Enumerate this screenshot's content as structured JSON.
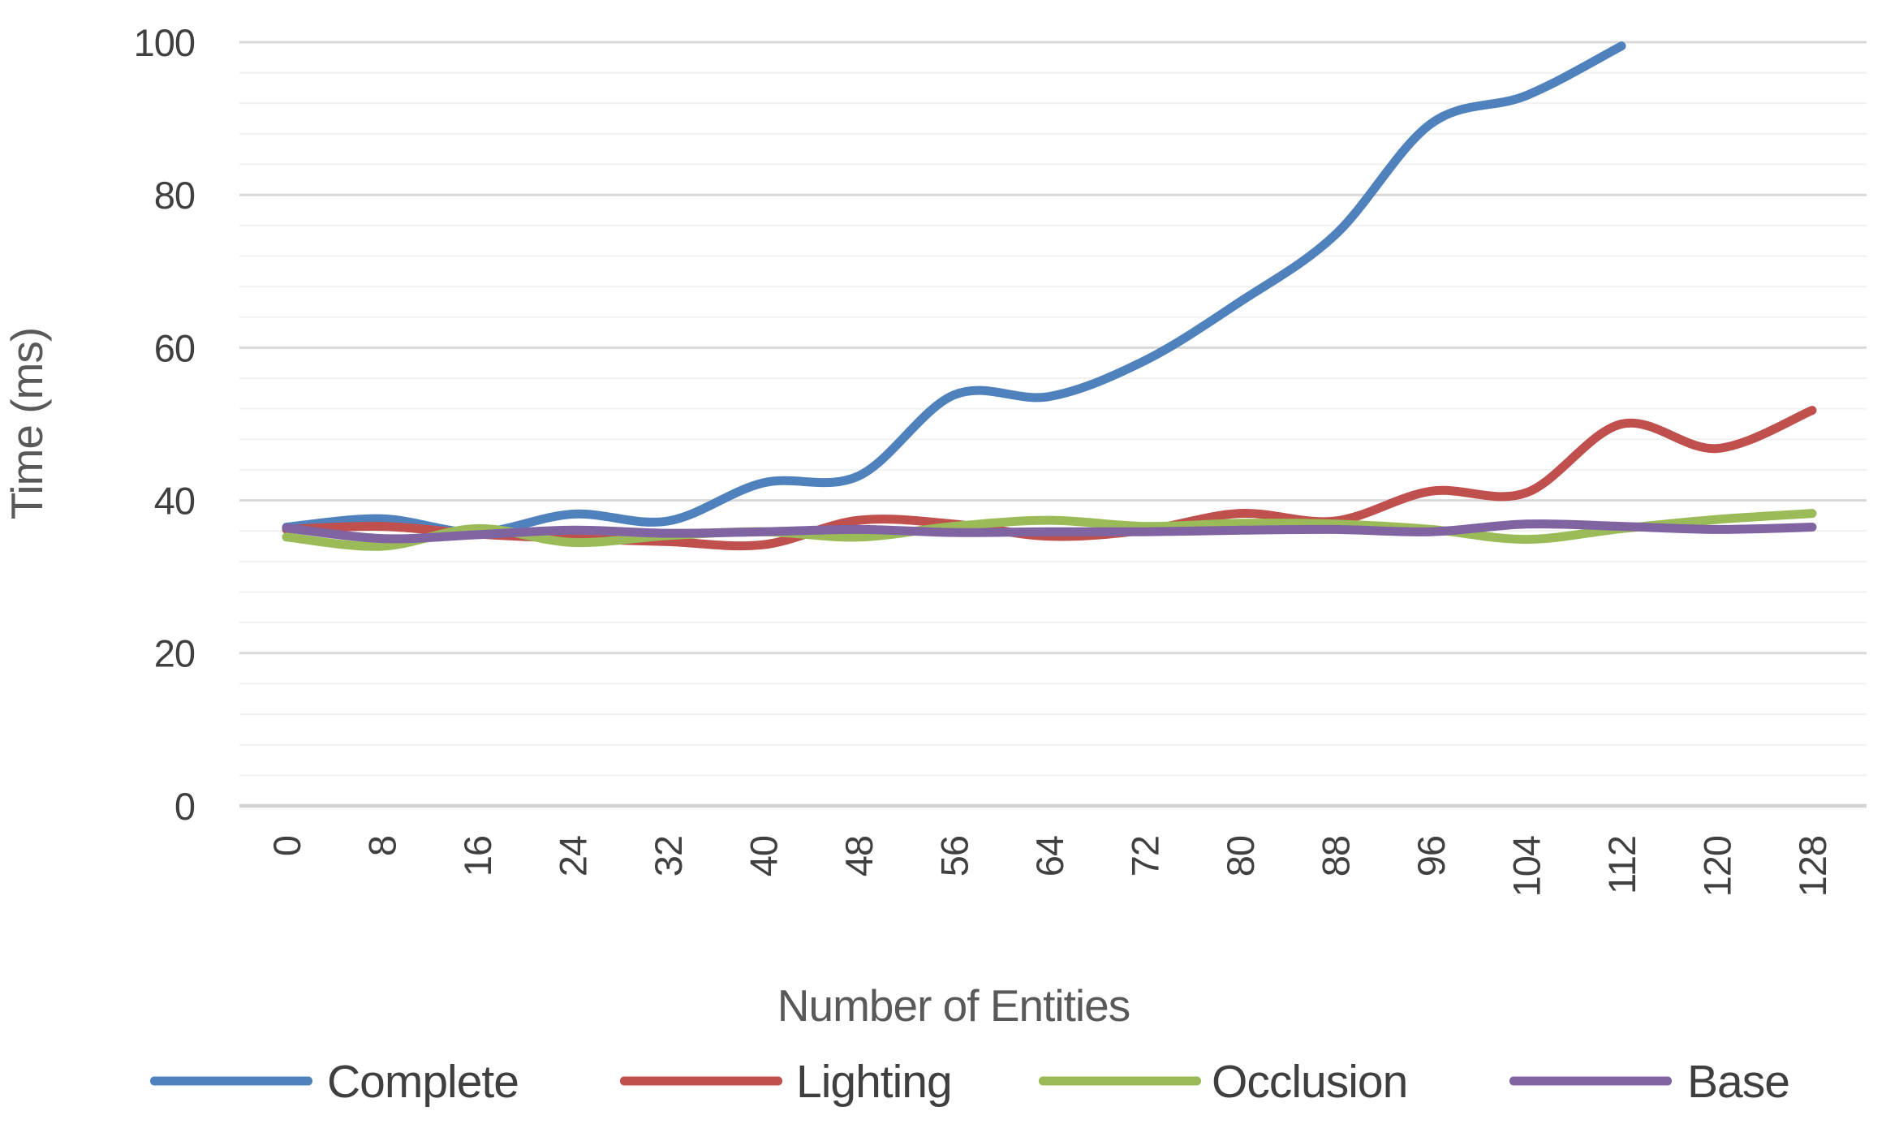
{
  "chart_data": {
    "type": "line",
    "title": "",
    "xlabel": "Number of Entities",
    "ylabel": "Time (ms)",
    "x": [
      0,
      8,
      16,
      24,
      32,
      40,
      48,
      56,
      64,
      72,
      80,
      88,
      96,
      104,
      112,
      120,
      128
    ],
    "x_tick_labels": [
      "0",
      "8",
      "16",
      "24",
      "32",
      "40",
      "48",
      "56",
      "64",
      "72",
      "80",
      "88",
      "96",
      "104",
      "112",
      "120",
      "128"
    ],
    "y_ticks": [
      0,
      20,
      40,
      60,
      80,
      100
    ],
    "ylim": [
      0,
      100
    ],
    "grid": {
      "minor_step": 4,
      "major_step": 20,
      "minor_color": "#f1f1f1",
      "major_color": "#d9d9d9",
      "baseline_color": "#d3d3d3"
    },
    "legend_position": "bottom",
    "series": [
      {
        "name": "Complete",
        "color": "#4F81BD",
        "values": [
          36.5,
          37.6,
          35.8,
          38.2,
          37.3,
          42.3,
          43.2,
          53.8,
          53.6,
          58.3,
          66.0,
          74.8,
          89.3,
          93.0,
          99.5,
          null,
          null
        ]
      },
      {
        "name": "Lighting",
        "color": "#C0504D",
        "values": [
          36.2,
          36.6,
          35.6,
          35.0,
          34.6,
          34.2,
          37.4,
          36.9,
          35.3,
          36.1,
          38.3,
          37.3,
          41.2,
          41.0,
          50.0,
          46.8,
          51.8
        ]
      },
      {
        "name": "Occlusion",
        "color": "#9BBB59",
        "values": [
          35.2,
          34.0,
          36.3,
          34.5,
          35.4,
          35.9,
          35.2,
          36.6,
          37.4,
          36.6,
          37.0,
          36.9,
          36.2,
          34.9,
          36.3,
          37.5,
          38.3
        ]
      },
      {
        "name": "Base",
        "color": "#8064A2",
        "values": [
          36.4,
          35.0,
          35.5,
          36.1,
          35.7,
          35.9,
          36.2,
          35.8,
          35.9,
          35.9,
          36.1,
          36.2,
          35.9,
          36.9,
          36.6,
          36.2,
          36.5
        ]
      }
    ]
  }
}
